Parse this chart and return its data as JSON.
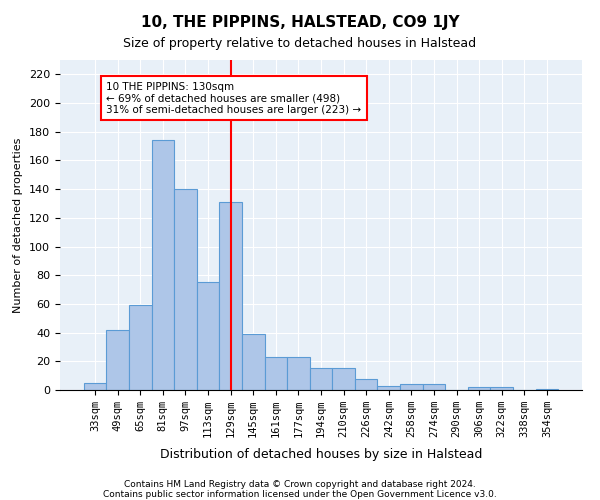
{
  "title": "10, THE PIPPINS, HALSTEAD, CO9 1JY",
  "subtitle": "Size of property relative to detached houses in Halstead",
  "xlabel": "Distribution of detached houses by size in Halstead",
  "ylabel": "Number of detached properties",
  "footnote1": "Contains HM Land Registry data © Crown copyright and database right 2024.",
  "footnote2": "Contains public sector information licensed under the Open Government Licence v3.0.",
  "categories": [
    "33sqm",
    "49sqm",
    "65sqm",
    "81sqm",
    "97sqm",
    "113sqm",
    "129sqm",
    "145sqm",
    "161sqm",
    "177sqm",
    "194sqm",
    "210sqm",
    "226sqm",
    "242sqm",
    "258sqm",
    "274sqm",
    "290sqm",
    "306sqm",
    "322sqm",
    "338sqm",
    "354sqm"
  ],
  "values": [
    5,
    42,
    59,
    174,
    140,
    75,
    131,
    39,
    23,
    23,
    15,
    15,
    8,
    3,
    4,
    4,
    0,
    2,
    2,
    0,
    1
  ],
  "bar_color": "#aec6e8",
  "bar_edge_color": "#5b9bd5",
  "vline_x_index": 6,
  "vline_color": "red",
  "annotation_title": "10 THE PIPPINS: 130sqm",
  "annotation_line1": "← 69% of detached houses are smaller (498)",
  "annotation_line2": "31% of semi-detached houses are larger (223) →",
  "annotation_box_color": "white",
  "annotation_box_edge_color": "red",
  "ylim": [
    0,
    230
  ],
  "yticks": [
    0,
    20,
    40,
    60,
    80,
    100,
    120,
    140,
    160,
    180,
    200,
    220
  ],
  "background_color": "#e8f0f8",
  "plot_background": "white"
}
